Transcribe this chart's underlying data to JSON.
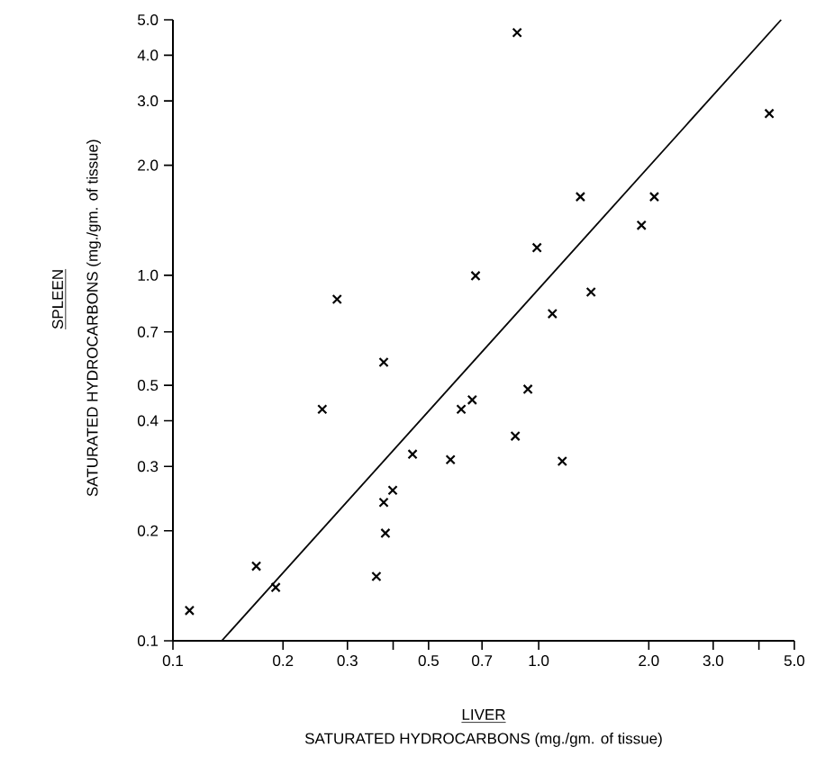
{
  "chart_data": {
    "type": "scatter",
    "xlabel": "SATURATED  HYDROCARBONS  (mg./gm. of tissue)",
    "ylabel": "SATURATED  HYDROCARBONS  (mg./gm. of tissue)",
    "annotations": [
      "LIVER",
      "SPLEEN"
    ],
    "log": "xy",
    "marker": "cross",
    "xlim": [
      0.1,
      5.0
    ],
    "ylim": [
      0.1,
      5.0
    ],
    "xticks": [
      {
        "value": 0.1,
        "label": "0.1"
      },
      {
        "value": 0.2,
        "label": "0.2"
      },
      {
        "value": 0.3,
        "label": "0.3"
      },
      {
        "value": 0.4,
        "label": null
      },
      {
        "value": 0.5,
        "label": "0.5"
      },
      {
        "value": 0.7,
        "label": "0.7"
      },
      {
        "value": 1.0,
        "label": "1.0"
      },
      {
        "value": 2.0,
        "label": "2.0"
      },
      {
        "value": 3.0,
        "label": "3.0"
      },
      {
        "value": 4.0,
        "label": null
      },
      {
        "value": 5.0,
        "label": "5.0"
      }
    ],
    "yticks": [
      {
        "value": 0.1,
        "label": "0.1"
      },
      {
        "value": 0.2,
        "label": "0.2"
      },
      {
        "value": 0.3,
        "label": "0.3"
      },
      {
        "value": 0.4,
        "label": "0.4"
      },
      {
        "value": 0.5,
        "label": "0.5"
      },
      {
        "value": 0.7,
        "label": "0.7"
      },
      {
        "value": 1.0,
        "label": "1.0"
      },
      {
        "value": 2.0,
        "label": "2.0"
      },
      {
        "value": 3.0,
        "label": "3.0"
      },
      {
        "value": 4.0,
        "label": "4.0"
      },
      {
        "value": 5.0,
        "label": "5.0"
      }
    ],
    "series": [
      {
        "color": "#000000",
        "x": [
          0.111,
          0.169,
          0.191,
          0.256,
          0.281,
          0.377,
          0.36,
          0.377,
          0.381,
          0.399,
          0.452,
          0.574,
          0.614,
          0.658,
          0.672,
          0.863,
          0.934,
          0.873,
          0.989,
          1.09,
          1.16,
          1.3,
          1.39,
          1.91,
          2.07,
          4.27
        ],
        "values": [
          0.121,
          0.16,
          0.14,
          0.43,
          0.86,
          0.578,
          0.15,
          0.239,
          0.197,
          0.258,
          0.324,
          0.313,
          0.43,
          0.456,
          0.997,
          0.363,
          0.488,
          4.61,
          1.19,
          0.785,
          0.31,
          1.64,
          0.9,
          1.37,
          1.64,
          2.77
        ]
      },
      {
        "type": "line",
        "color": "#000000",
        "marker": "none",
        "x": [
          0.136,
          4.6
        ],
        "values": [
          0.1,
          5.0
        ]
      }
    ]
  }
}
